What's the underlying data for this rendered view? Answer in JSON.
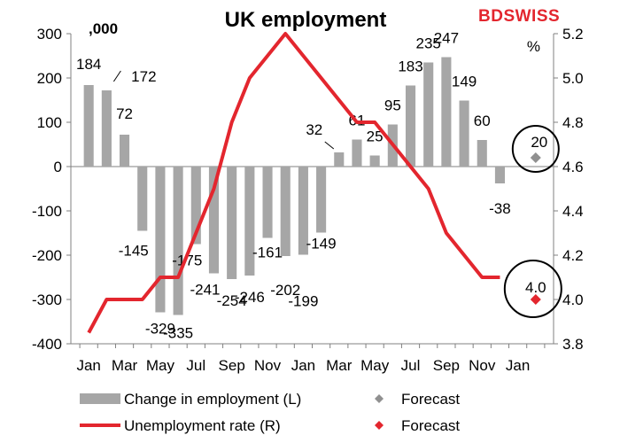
{
  "chart_data": {
    "type": "bar+line",
    "title": "UK employment",
    "left_unit": ",000",
    "right_unit": "%",
    "x_ticks": [
      "Jan",
      "Mar",
      "May",
      "Jul",
      "Sep",
      "Nov",
      "Jan",
      "Mar",
      "May",
      "Jul",
      "Sep",
      "Nov",
      "Jan"
    ],
    "left_axis": {
      "min": -400,
      "max": 300,
      "ticks": [
        300,
        200,
        100,
        0,
        -100,
        -200,
        -300,
        -400
      ]
    },
    "right_axis": {
      "min": 3.8,
      "max": 5.2,
      "ticks": [
        "5.2",
        "5.0",
        "4.8",
        "4.6",
        "4.4",
        "4.2",
        "4.0",
        "3.8"
      ]
    },
    "bars": {
      "name": "Change in employment (L)",
      "color": "#a6a6a6",
      "values": [
        184,
        172,
        72,
        -145,
        -329,
        -335,
        -175,
        -241,
        -254,
        -246,
        -161,
        -202,
        -199,
        -149,
        32,
        61,
        25,
        95,
        183,
        235,
        247,
        149,
        60,
        -38
      ],
      "labels": [
        "184",
        "172",
        "72",
        "-145",
        "-329",
        "-335",
        "-175",
        "-241",
        "-254",
        "-246",
        "-161",
        "-202",
        "-199",
        "-149",
        "32",
        "61",
        "25",
        "95",
        "183",
        "235",
        "247",
        "149",
        "60",
        "-38"
      ]
    },
    "bar_forecast": {
      "name": "Forecast",
      "value": 20,
      "label": "20",
      "color": "#909090"
    },
    "line": {
      "name": "Unemployment rate (R)",
      "color": "#e3262e",
      "values": [
        3.85,
        4.0,
        4.0,
        4.0,
        4.1,
        4.1,
        4.3,
        4.5,
        4.8,
        5.0,
        5.1,
        5.2,
        5.1,
        5.0,
        4.9,
        4.8,
        4.8,
        4.7,
        4.6,
        4.5,
        4.3,
        4.2,
        4.1,
        4.1
      ]
    },
    "line_forecast": {
      "name": "Forecast",
      "value": 4.0,
      "label": "4.0",
      "color": "#e3262e"
    },
    "legend": [
      {
        "label": "Change in employment (L)",
        "kind": "bar",
        "color": "#a6a6a6"
      },
      {
        "label": "Forecast",
        "kind": "diamond",
        "color": "#909090"
      },
      {
        "label": "Unemployment rate (R)",
        "kind": "line",
        "color": "#e3262e"
      },
      {
        "label": "Forecast",
        "kind": "diamond",
        "color": "#e3262e"
      }
    ]
  },
  "brand": {
    "logo_text": "BDSWISS",
    "color": "#e3262e"
  }
}
